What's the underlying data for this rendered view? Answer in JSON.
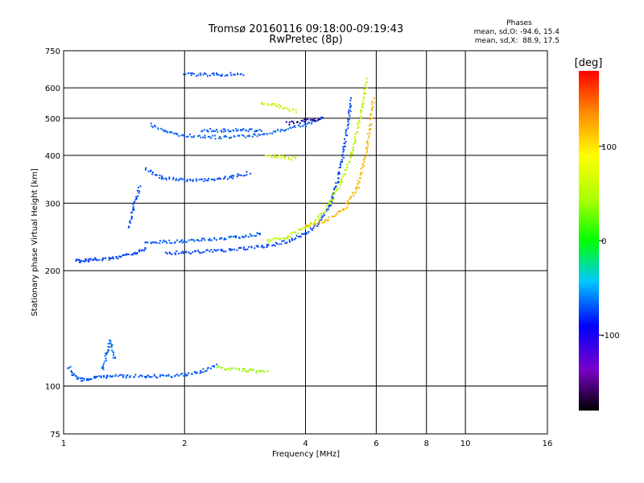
{
  "chart_data": {
    "type": "scatter",
    "title": "Tromsø 20160116 09:18:00-09:19:43",
    "subtitle": "RwPretec (8p)",
    "xlabel": "Frequency [MHz]",
    "ylabel": "Stationary phase Virtual Height [km]",
    "x_scale": "log",
    "y_scale": "log",
    "xlim": [
      1,
      16
    ],
    "ylim": [
      75,
      750
    ],
    "x_ticks": [
      1,
      2,
      4,
      6,
      8,
      10,
      16
    ],
    "y_ticks": [
      75,
      100,
      200,
      300,
      400,
      500,
      600,
      750
    ],
    "grid_x": [
      2,
      4,
      6,
      8,
      10
    ],
    "grid_y": [
      100,
      200,
      300,
      400,
      500,
      600
    ],
    "grid": true,
    "colorbar": {
      "label": "[deg]",
      "range": [
        -180,
        180
      ],
      "ticks": [
        100,
        0,
        -100
      ],
      "colormap": "rainbow"
    },
    "stats": {
      "heading": "Phases",
      "line1": "mean, sd,O: -94.6, 15.4",
      "line2": "mean, sd,X:  88.9, 17.5"
    },
    "traces": [
      {
        "x": [
          1.03,
          1.06,
          1.1,
          1.15,
          1.2,
          1.28,
          1.4,
          1.6,
          1.8,
          2.0,
          2.2,
          2.4
        ],
        "y": [
          112,
          106,
          104,
          104,
          105,
          106,
          106,
          106,
          106,
          107,
          109,
          113
        ],
        "phase": -112
      },
      {
        "x": [
          1.25,
          1.28,
          1.31,
          1.34
        ],
        "y": [
          110,
          121,
          131,
          118
        ],
        "phase": -105
      },
      {
        "x": [
          1.07,
          1.1,
          1.15,
          1.2,
          1.3,
          1.4,
          1.5,
          1.6
        ],
        "y": [
          212,
          212,
          213,
          214,
          215,
          218,
          222,
          228
        ],
        "phase": -120
      },
      {
        "x": [
          1.6,
          1.8,
          2.0,
          2.2,
          2.5,
          2.8,
          3.1
        ],
        "y": [
          236,
          238,
          239,
          241,
          243,
          246,
          250
        ],
        "phase": -110
      },
      {
        "x": [
          1.8,
          2.0,
          2.4,
          2.8,
          3.2,
          3.6,
          4.0,
          4.3,
          4.6,
          4.8,
          5.0,
          5.2
        ],
        "y": [
          222,
          223,
          225,
          228,
          232,
          238,
          250,
          265,
          295,
          340,
          420,
          560
        ],
        "phase": -118
      },
      {
        "x": [
          3.2,
          3.6,
          4.0,
          4.3,
          4.6,
          4.9,
          5.2,
          5.5,
          5.7
        ],
        "y": [
          238,
          245,
          260,
          275,
          300,
          340,
          400,
          520,
          630
        ],
        "phase": 80
      },
      {
        "x": [
          4.0,
          4.5,
          5.0,
          5.4,
          5.7,
          5.9
        ],
        "y": [
          260,
          270,
          290,
          330,
          420,
          560
        ],
        "phase": 120
      },
      {
        "x": [
          1.45,
          1.5,
          1.55
        ],
        "y": [
          260,
          300,
          330
        ],
        "phase": -118
      },
      {
        "x": [
          1.6,
          1.75,
          2.0,
          2.3,
          2.6,
          2.9
        ],
        "y": [
          370,
          350,
          345,
          345,
          350,
          360
        ],
        "phase": -115
      },
      {
        "x": [
          1.65,
          1.8,
          2.0,
          2.5,
          3.0,
          3.5,
          4.0,
          4.4
        ],
        "y": [
          480,
          460,
          450,
          445,
          452,
          466,
          480,
          500
        ],
        "phase": -108
      },
      {
        "x": [
          2.2,
          2.5,
          2.8,
          3.1
        ],
        "y": [
          465,
          465,
          465,
          465
        ],
        "phase": -112
      },
      {
        "x": [
          3.6,
          4.0,
          4.4
        ],
        "y": [
          485,
          492,
          500
        ],
        "phase": -150
      },
      {
        "x": [
          3.2,
          3.5,
          3.8
        ],
        "y": [
          400,
          395,
          392
        ],
        "phase": 85
      },
      {
        "x": [
          3.1,
          3.4,
          3.8
        ],
        "y": [
          550,
          540,
          520
        ],
        "phase": 85
      },
      {
        "x": [
          2.0,
          2.4,
          2.8
        ],
        "y": [
          650,
          650,
          652
        ],
        "phase": -115
      },
      {
        "x": [
          2.4,
          2.8,
          3.2
        ],
        "y": [
          112,
          110,
          109
        ],
        "phase": 70
      }
    ]
  }
}
